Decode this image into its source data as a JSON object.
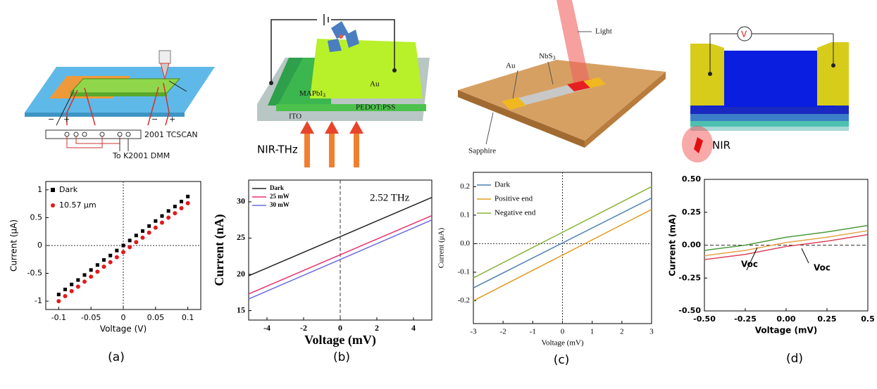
{
  "chart_data": [
    {
      "type": "scatter",
      "xlabel": "Voltage (V)",
      "ylabel": "Current (μA)",
      "x": [
        -0.1,
        -0.09,
        -0.08,
        -0.07,
        -0.06,
        -0.05,
        -0.04,
        -0.03,
        -0.02,
        -0.01,
        0,
        0.01,
        0.02,
        0.03,
        0.04,
        0.05,
        0.06,
        0.07,
        0.08,
        0.09,
        0.1
      ],
      "series": [
        {
          "name": "Dark",
          "color": "#000000",
          "marker": "square",
          "values": [
            -0.88,
            -0.79,
            -0.7,
            -0.62,
            -0.53,
            -0.44,
            -0.35,
            -0.26,
            -0.18,
            -0.09,
            0,
            0.09,
            0.18,
            0.26,
            0.35,
            0.44,
            0.53,
            0.62,
            0.7,
            0.79,
            0.88
          ]
        },
        {
          "name": "10.57 μm",
          "color": "#e3191c",
          "marker": "circle",
          "values": [
            -1.0,
            -0.91,
            -0.82,
            -0.74,
            -0.65,
            -0.56,
            -0.47,
            -0.38,
            -0.3,
            -0.21,
            -0.12,
            -0.03,
            0.06,
            0.14,
            0.23,
            0.32,
            0.41,
            0.5,
            0.58,
            0.67,
            0.76
          ]
        }
      ],
      "xlim": [
        -0.12,
        0.12
      ],
      "xticks": [
        -0.1,
        -0.05,
        0,
        0.05,
        0.1
      ],
      "ylim": [
        -1.15,
        1.15
      ],
      "yticks": [
        -1,
        -0.5,
        0,
        0.5,
        1
      ],
      "reference_lines": {
        "x": [
          0
        ],
        "y": [
          0
        ]
      },
      "legend": "upper left"
    },
    {
      "type": "line",
      "xlabel": "Voltage (mV)",
      "ylabel": "Current (nA)",
      "annotations": [
        "2.52 THz"
      ],
      "x": [
        -5,
        5
      ],
      "series": [
        {
          "name": "Dark",
          "color": "#222222",
          "values": [
            19.8,
            30.6
          ]
        },
        {
          "name": "25 mW",
          "color": "#e8336a",
          "values": [
            17.3,
            28.1
          ]
        },
        {
          "name": "30 mW",
          "color": "#6b6be0",
          "values": [
            16.6,
            27.5
          ]
        }
      ],
      "xlim": [
        -5,
        5
      ],
      "xticks": [
        -4,
        -2,
        0,
        2,
        4
      ],
      "ylim": [
        13.7,
        33
      ],
      "yticks": [
        15,
        20,
        25,
        30
      ],
      "reference_lines": {
        "x": [
          0
        ]
      },
      "legend": "upper left"
    },
    {
      "type": "line",
      "xlabel": "Voltage (mV)",
      "ylabel": "Current (μA)",
      "x": [
        -3,
        3
      ],
      "series": [
        {
          "name": "Dark",
          "color": "#4a7eb5",
          "values": [
            -0.155,
            0.16
          ]
        },
        {
          "name": "Positive end",
          "color": "#e39b1f",
          "values": [
            -0.2,
            0.12
          ]
        },
        {
          "name": "Negative end",
          "color": "#8bb33a",
          "values": [
            -0.12,
            0.2
          ]
        }
      ],
      "xlim": [
        -3,
        3
      ],
      "xticks": [
        -3,
        -2,
        -1,
        0,
        1,
        2,
        3
      ],
      "ylim": [
        -0.28,
        0.25
      ],
      "yticks": [
        -0.2,
        -0.1,
        {
          "value": 0,
          "label": "0.0"
        },
        0.1,
        0.2
      ],
      "reference_lines": {
        "x": [
          0
        ],
        "y": [
          0
        ]
      },
      "legend": "upper left"
    },
    {
      "type": "line",
      "xlabel": "Voltage (mV)",
      "ylabel": "Current (mA)",
      "annotations": [
        "Voc",
        "Voc"
      ],
      "x": [
        -0.5,
        -0.25,
        0,
        0.25,
        0.5
      ],
      "series": [
        {
          "color": "#4c9a3c",
          "values": [
            -0.04,
            0.0,
            0.06,
            0.1,
            0.15
          ]
        },
        {
          "color": "#e3a34a",
          "values": [
            -0.08,
            -0.04,
            0.02,
            0.06,
            0.11
          ]
        },
        {
          "color": "#d9465a",
          "values": [
            -0.11,
            -0.07,
            -0.01,
            0.03,
            0.08
          ]
        }
      ],
      "xlim": [
        -0.5,
        0.5
      ],
      "xticks": [
        {
          "value": -0.5,
          "label": "-0.50"
        },
        -0.25,
        {
          "value": 0,
          "label": "0.00"
        },
        0.25,
        0.5
      ],
      "ylim": [
        -0.5,
        0.5
      ],
      "yticks": [
        {
          "value": -0.5,
          "label": "-0.50"
        },
        -0.25,
        {
          "value": 0,
          "label": "0.00"
        },
        0.25,
        {
          "value": 0.5,
          "label": "0.50"
        }
      ],
      "reference_lines": {
        "y": [
          0
        ]
      }
    }
  ],
  "schematics": [
    {
      "labels": [
        "2001 TCSCAN",
        "To K2001 DMM",
        "−",
        "+",
        "−",
        "+"
      ]
    },
    {
      "labels": [
        "MAPbI",
        "3",
        "Au",
        "PEDOT:PSS",
        "ITO",
        "NIR-THz"
      ]
    },
    {
      "labels": [
        "Light",
        "Au",
        "NbS",
        "3",
        "Sapphire"
      ]
    },
    {
      "labels": [
        "V",
        "NIR"
      ]
    }
  ],
  "captions": [
    "(a)",
    "(b)",
    "(c)",
    "(d)"
  ]
}
